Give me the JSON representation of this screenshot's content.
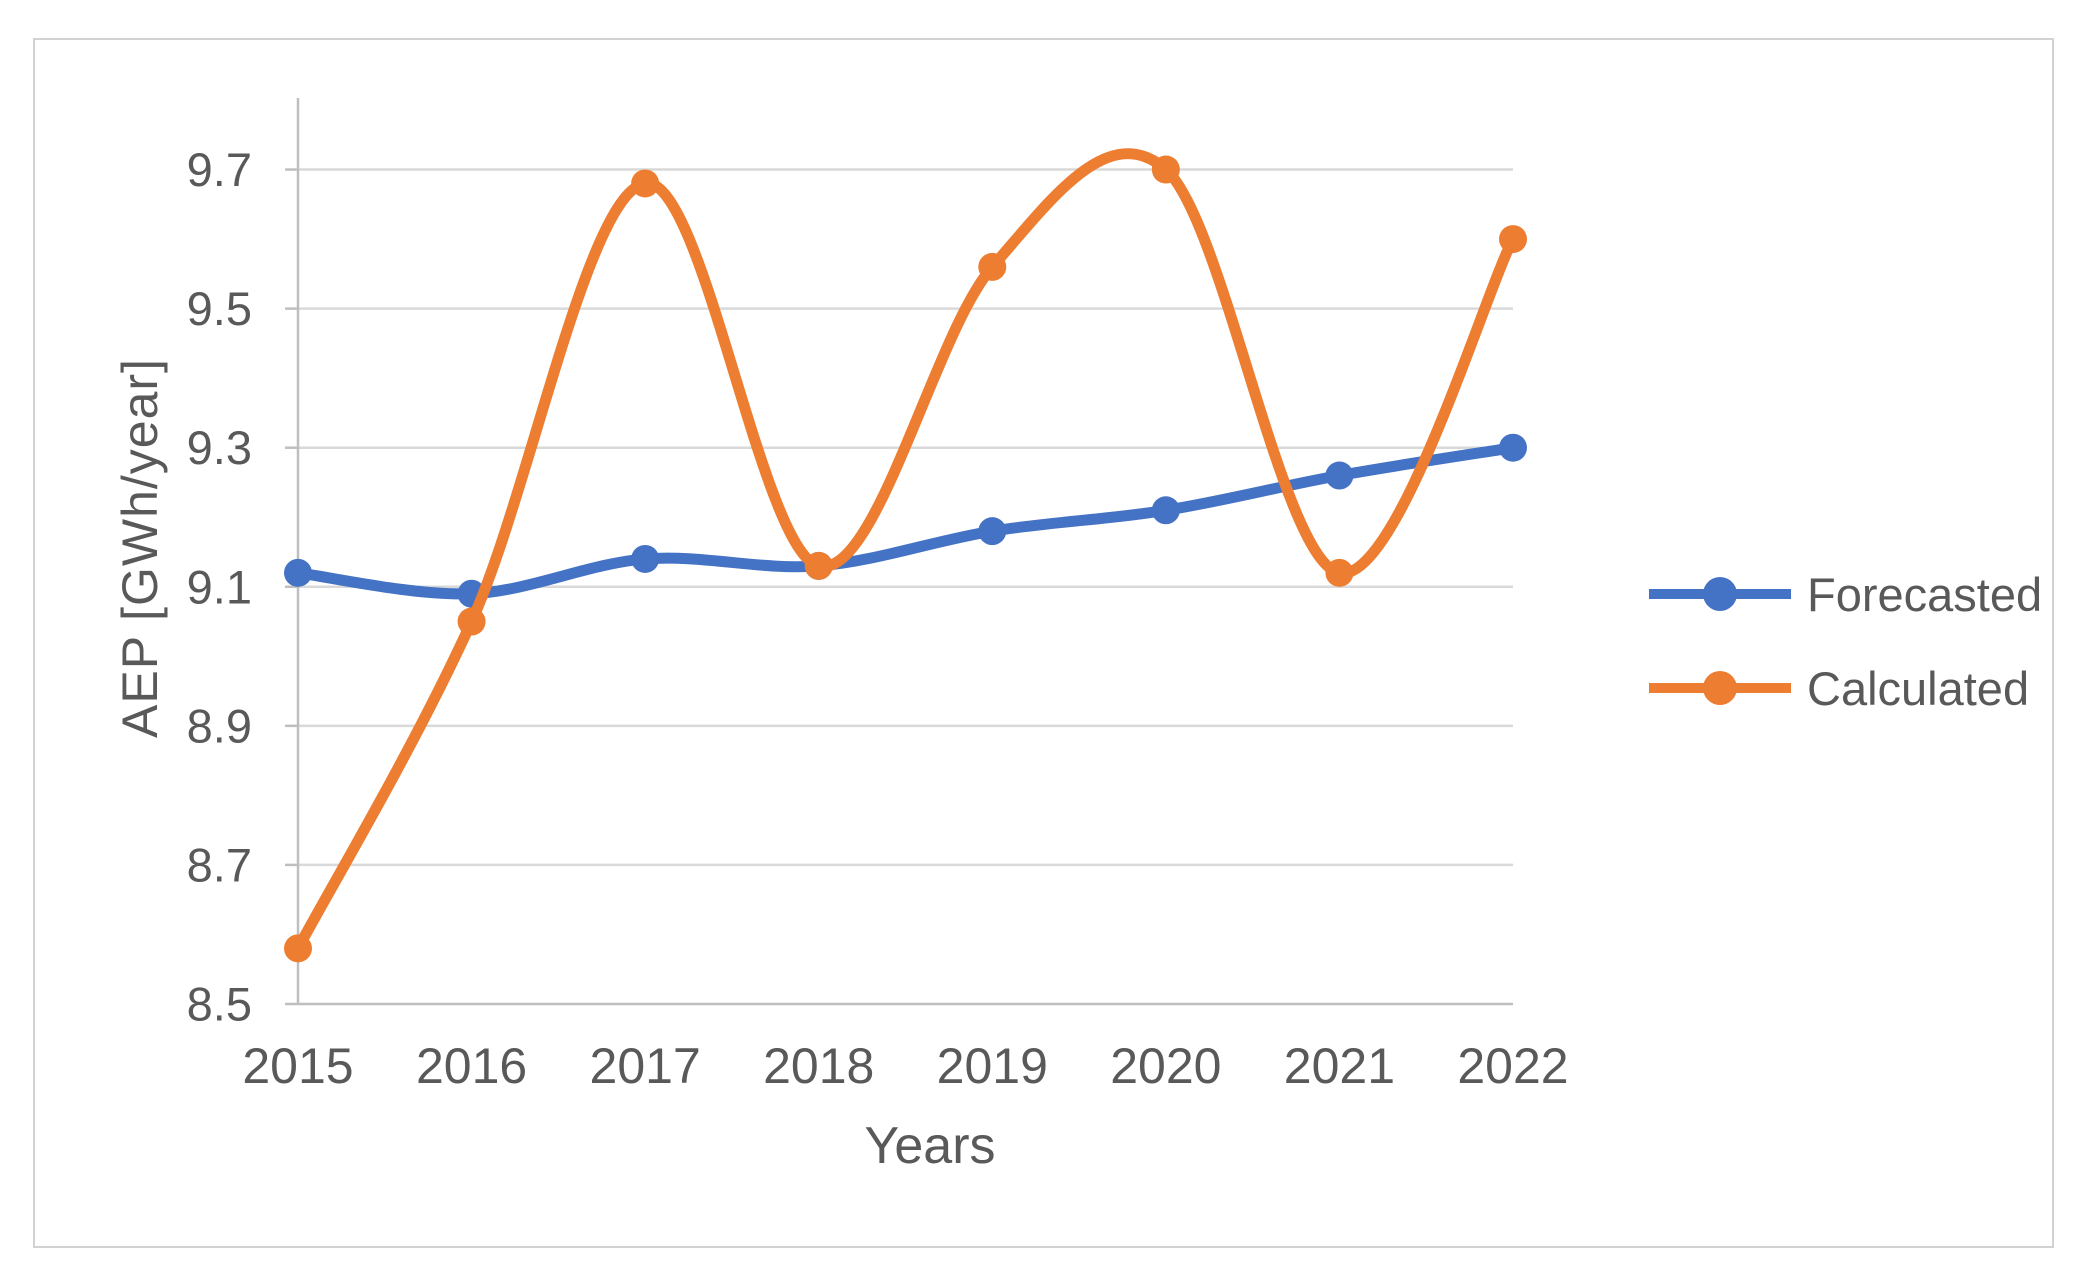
{
  "chart_data": {
    "type": "line",
    "title": "",
    "xlabel": "Years",
    "ylabel": "AEP [GWh/year]",
    "categories": [
      "2015",
      "2016",
      "2017",
      "2018",
      "2019",
      "2020",
      "2021",
      "2022"
    ],
    "series": [
      {
        "name": "Forecasted",
        "color": "#4472C4",
        "values": [
          9.12,
          9.09,
          9.14,
          9.13,
          9.18,
          9.21,
          9.26,
          9.3
        ]
      },
      {
        "name": "Calculated",
        "color": "#ED7D31",
        "values": [
          8.58,
          9.05,
          9.68,
          9.13,
          9.56,
          9.7,
          9.12,
          9.6
        ]
      }
    ],
    "ylim": [
      8.5,
      9.8
    ],
    "yticks": [
      8.5,
      8.7,
      8.9,
      9.1,
      9.3,
      9.5,
      9.7
    ],
    "ytick_labels": [
      "8.5",
      "8.7",
      "8.9",
      "9.1",
      "9.3",
      "9.5",
      "9.7"
    ],
    "grid": true,
    "smooth": true,
    "legend_position": "right",
    "legend": [
      "Forecasted",
      "Calculated"
    ]
  },
  "colors": {
    "text": "#595959",
    "gridline": "#D9D9D9",
    "axis": "#BFBFBF",
    "frame_border": "#D2D2D2",
    "background": "#FFFFFF"
  }
}
